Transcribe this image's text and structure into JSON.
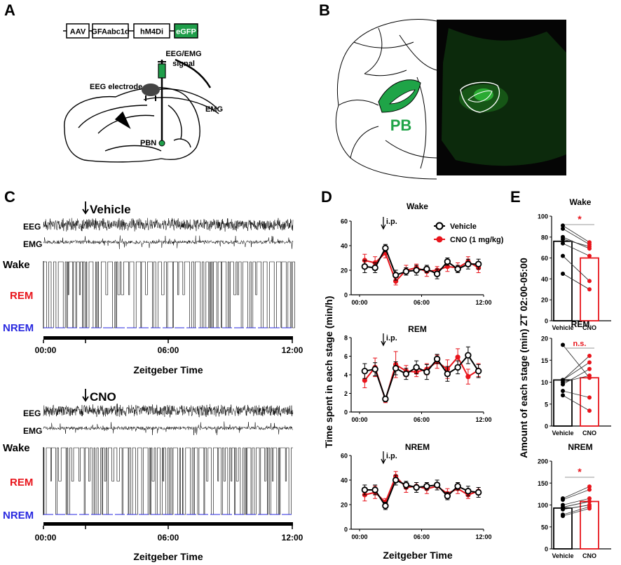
{
  "panel_labels": {
    "a": "A",
    "b": "B",
    "c": "C",
    "d": "D",
    "e": "E"
  },
  "panel_a": {
    "construct": [
      "AAV",
      "GFAabc1d",
      "hM4Di",
      "eGFP"
    ],
    "labels": {
      "signal": "EEG/EMG",
      "signal2": "signal",
      "electrode": "EEG electrode",
      "emg": "EMG",
      "pbn": "PBN"
    },
    "colors": {
      "egfp": "#1f9e4a"
    }
  },
  "panel_b": {
    "label": "PB",
    "colors": {
      "pb": "#1fa447",
      "fluor": "#2fbf3a"
    }
  },
  "panel_c": {
    "conditions": [
      {
        "title": "Vehicle",
        "ticks": [
          "00:00",
          "06:00",
          "12:00"
        ],
        "xlabel": "Zeitgeber Time"
      },
      {
        "title": "CNO",
        "ticks": [
          "00:00",
          "06:00",
          "12:00"
        ],
        "xlabel": "Zeitgeber Time"
      }
    ],
    "trace_labels": {
      "eeg": "EEG",
      "emg": "EMG"
    },
    "states": {
      "wake": "Wake",
      "rem": "REM",
      "nrem": "NREM"
    },
    "colors": {
      "wake": "#000000",
      "rem": "#e8141b",
      "nrem": "#2a2ae0"
    }
  },
  "panel_d": {
    "ylabel": "Time spent in each stage (min/h)",
    "xlabel": "Zeitgeber Time",
    "injection": "i.p.",
    "legend": [
      "Vehicle",
      "CNO (1 mg/kg)"
    ],
    "colors": {
      "vehicle": "#000000",
      "cno": "#e8141b"
    }
  },
  "panel_e": {
    "ylabel": "Amount of each stage (min) ZT 02:00-05:00",
    "categories": [
      "Vehicle",
      "CNO"
    ],
    "colors": {
      "vehicle": "#000000",
      "cno": "#e8141b"
    }
  },
  "chart_data": [
    {
      "type": "line",
      "title": "Wake",
      "xlabel": "",
      "ylabel": "",
      "x_ticks": [
        "00:00",
        "06:00",
        "12:00"
      ],
      "ylim": [
        0,
        60
      ],
      "y_ticks": [
        0,
        20,
        40,
        60
      ],
      "x": [
        0.5,
        1.5,
        2.5,
        3.5,
        4.5,
        5.5,
        6.5,
        7.5,
        8.5,
        9.5,
        10.5,
        11.5
      ],
      "series": [
        {
          "name": "Vehicle",
          "values": [
            23,
            22,
            38,
            16,
            19,
            20,
            21,
            17,
            27,
            21,
            25,
            25
          ],
          "errors": [
            5,
            4,
            3,
            4,
            3,
            4,
            3,
            4,
            3,
            3,
            4,
            4
          ]
        },
        {
          "name": "CNO (1 mg/kg)",
          "values": [
            28,
            26,
            34,
            11,
            20,
            22,
            19,
            20,
            23,
            22,
            27,
            22
          ],
          "errors": [
            5,
            5,
            4,
            3,
            4,
            3,
            4,
            3,
            4,
            4,
            4,
            4
          ]
        }
      ]
    },
    {
      "type": "line",
      "title": "REM",
      "xlabel": "",
      "ylabel": "",
      "x_ticks": [
        "00:00",
        "06:00",
        "12:00"
      ],
      "ylim": [
        0,
        8
      ],
      "y_ticks": [
        0,
        2,
        4,
        6,
        8
      ],
      "x": [
        0.5,
        1.5,
        2.5,
        3.5,
        4.5,
        5.5,
        6.5,
        7.5,
        8.5,
        9.5,
        10.5,
        11.5
      ],
      "series": [
        {
          "name": "Vehicle",
          "values": [
            4.4,
            4.6,
            1.4,
            4.7,
            4.1,
            4.8,
            4.3,
            5.7,
            4.1,
            4.8,
            6.1,
            4.4
          ],
          "errors": [
            0.8,
            0.7,
            0.3,
            0.7,
            0.6,
            0.7,
            0.8,
            0.5,
            0.8,
            0.7,
            0.9,
            0.7
          ]
        },
        {
          "name": "CNO (1 mg/kg)",
          "values": [
            3.4,
            4.8,
            1.3,
            5.1,
            4.4,
            4.3,
            4.6,
            5.4,
            4.6,
            5.9,
            3.8,
            4.5
          ],
          "errors": [
            0.8,
            1.0,
            0.3,
            1.4,
            0.6,
            0.5,
            0.6,
            0.7,
            1.0,
            0.9,
            0.8,
            0.7
          ]
        }
      ]
    },
    {
      "type": "line",
      "title": "NREM",
      "xlabel": "",
      "ylabel": "",
      "x_ticks": [
        "00:00",
        "06:00",
        "12:00"
      ],
      "ylim": [
        0,
        60
      ],
      "y_ticks": [
        0,
        20,
        40,
        60
      ],
      "x": [
        0.5,
        1.5,
        2.5,
        3.5,
        4.5,
        5.5,
        6.5,
        7.5,
        8.5,
        9.5,
        10.5,
        11.5
      ],
      "series": [
        {
          "name": "Vehicle",
          "values": [
            32,
            32,
            19,
            40,
            36,
            34,
            35,
            36,
            27,
            35,
            31,
            30
          ],
          "errors": [
            4,
            4,
            3,
            4,
            3,
            4,
            3,
            4,
            3,
            3,
            4,
            4
          ]
        },
        {
          "name": "CNO (1 mg/kg)",
          "values": [
            28,
            30,
            22,
            43,
            34,
            35,
            33,
            35,
            29,
            33,
            28,
            31
          ],
          "errors": [
            5,
            5,
            3,
            4,
            4,
            3,
            4,
            3,
            4,
            4,
            3,
            3
          ]
        }
      ]
    },
    {
      "type": "bar",
      "title": "Wake",
      "categories": [
        "Vehicle",
        "CNO"
      ],
      "ylim": [
        0,
        100
      ],
      "y_ticks": [
        0,
        20,
        40,
        60,
        80,
        100
      ],
      "values": [
        76,
        60
      ],
      "significance": "*",
      "pairs": [
        [
          91,
          75
        ],
        [
          88,
          73
        ],
        [
          80,
          69
        ],
        [
          78,
          71
        ],
        [
          74,
          62
        ],
        [
          62,
          38
        ],
        [
          45,
          30
        ]
      ]
    },
    {
      "type": "bar",
      "title": "REM",
      "categories": [
        "Vehicle",
        "CNO"
      ],
      "ylim": [
        0,
        20
      ],
      "y_ticks": [
        0,
        5,
        10,
        15,
        20
      ],
      "values": [
        10.5,
        11
      ],
      "significance": "n.s.",
      "pairs": [
        [
          18.5,
          11
        ],
        [
          10.5,
          14.5
        ],
        [
          10.5,
          16
        ],
        [
          10,
          11.5
        ],
        [
          9.5,
          13
        ],
        [
          8,
          6.5
        ],
        [
          7,
          3.5
        ]
      ]
    },
    {
      "type": "bar",
      "title": "NREM",
      "categories": [
        "Vehicle",
        "CNO"
      ],
      "ylim": [
        0,
        200
      ],
      "y_ticks": [
        0,
        50,
        100,
        150,
        200
      ],
      "values": [
        93,
        108
      ],
      "significance": "*",
      "pairs": [
        [
          115,
          142
        ],
        [
          112,
          135
        ],
        [
          100,
          115
        ],
        [
          95,
          108
        ],
        [
          90,
          100
        ],
        [
          78,
          96
        ],
        [
          75,
          92
        ]
      ]
    }
  ]
}
